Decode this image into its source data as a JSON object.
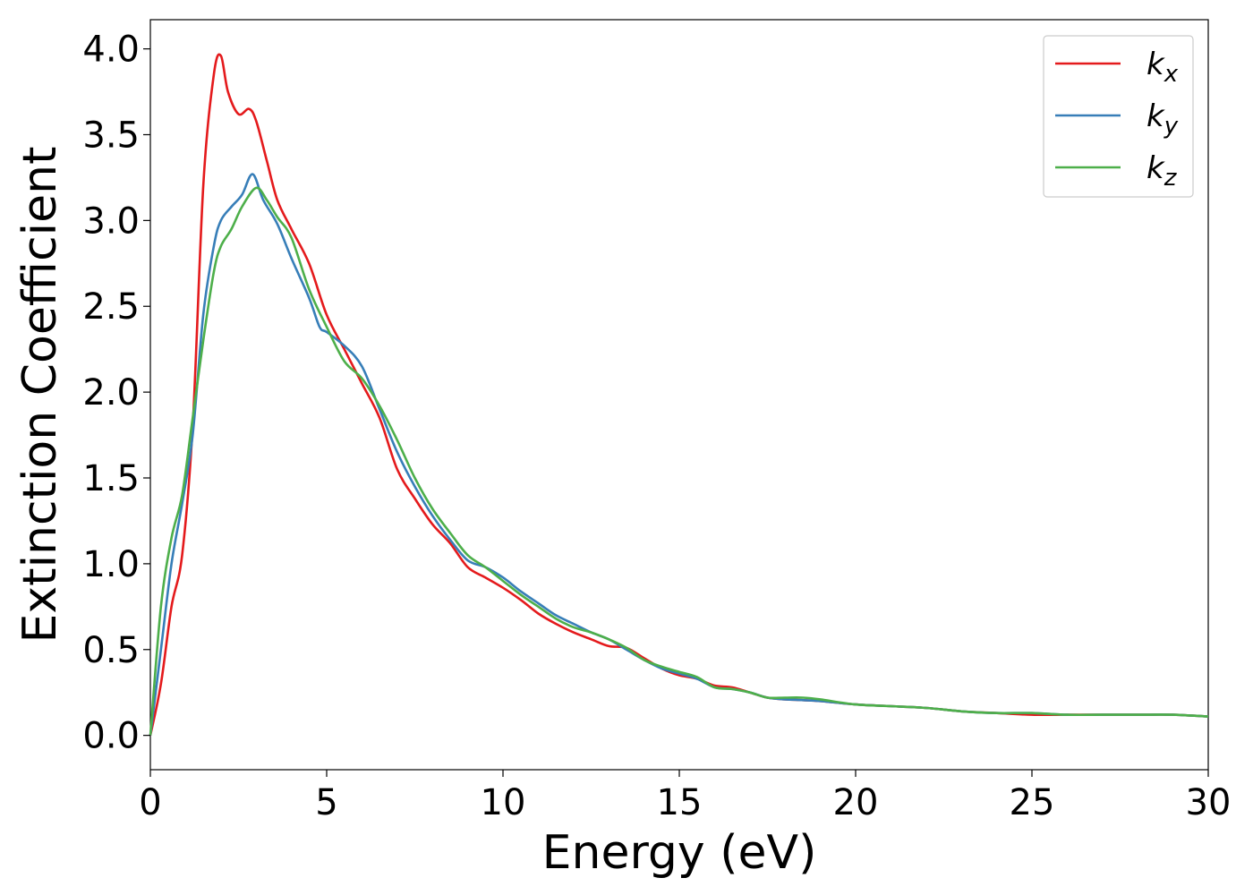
{
  "chart_data": {
    "type": "line",
    "title": "",
    "xlabel": "Energy (eV)",
    "ylabel": "Extinction Coefficient",
    "xlim": [
      0,
      30
    ],
    "ylim": [
      -0.2,
      4.17
    ],
    "xticks": [
      0,
      5,
      10,
      15,
      20,
      25,
      30
    ],
    "xtick_labels": [
      "0",
      "5",
      "10",
      "15",
      "20",
      "25",
      "30"
    ],
    "yticks": [
      0.0,
      0.5,
      1.0,
      1.5,
      2.0,
      2.5,
      3.0,
      3.5,
      4.0
    ],
    "ytick_labels": [
      "0.0",
      "0.5",
      "1.0",
      "1.5",
      "2.0",
      "2.5",
      "3.0",
      "3.5",
      "4.0"
    ],
    "grid": false,
    "legend_position": "top-right",
    "series": [
      {
        "name": "k",
        "subscript": "x",
        "color": "#e41a1c",
        "x": [
          0,
          0.3,
          0.6,
          0.9,
          1.2,
          1.5,
          1.8,
          2.0,
          2.2,
          2.5,
          2.8,
          3.0,
          3.3,
          3.6,
          4.0,
          4.5,
          5.0,
          5.5,
          6.0,
          6.5,
          7.0,
          7.5,
          8.0,
          8.5,
          9.0,
          9.5,
          10.0,
          10.5,
          11.0,
          11.5,
          12.0,
          12.5,
          13.0,
          13.5,
          14.0,
          14.5,
          15.0,
          15.5,
          16.0,
          16.5,
          17.0,
          17.5,
          18.0,
          19.0,
          20.0,
          21.0,
          22.0,
          23.0,
          24.0,
          25.0,
          26.0,
          27.0,
          28.0,
          29.0,
          30.0
        ],
        "values": [
          0.0,
          0.3,
          0.75,
          1.05,
          1.8,
          3.2,
          3.85,
          3.96,
          3.75,
          3.62,
          3.65,
          3.58,
          3.35,
          3.12,
          2.95,
          2.75,
          2.45,
          2.25,
          2.05,
          1.85,
          1.55,
          1.38,
          1.23,
          1.12,
          0.98,
          0.92,
          0.86,
          0.79,
          0.71,
          0.65,
          0.6,
          0.56,
          0.52,
          0.51,
          0.45,
          0.39,
          0.35,
          0.33,
          0.29,
          0.28,
          0.25,
          0.22,
          0.21,
          0.2,
          0.18,
          0.17,
          0.16,
          0.14,
          0.13,
          0.12,
          0.12,
          0.12,
          0.12,
          0.12,
          0.11
        ]
      },
      {
        "name": "k",
        "subscript": "y",
        "color": "#377eb8",
        "x": [
          0,
          0.3,
          0.6,
          0.9,
          1.2,
          1.5,
          1.8,
          2.0,
          2.3,
          2.6,
          2.9,
          3.2,
          3.6,
          4.0,
          4.5,
          4.8,
          5.0,
          5.5,
          6.0,
          6.5,
          7.0,
          7.5,
          8.0,
          8.5,
          9.0,
          9.5,
          10.0,
          10.5,
          11.0,
          11.5,
          12.0,
          12.5,
          13.0,
          13.5,
          14.0,
          14.5,
          15.0,
          15.5,
          16.0,
          16.5,
          17.0,
          17.5,
          18.0,
          19.0,
          20.0,
          21.0,
          22.0,
          23.0,
          24.0,
          25.0,
          26.0,
          27.0,
          28.0,
          29.0,
          30.0
        ],
        "values": [
          0.0,
          0.5,
          1.0,
          1.35,
          1.75,
          2.45,
          2.85,
          3.0,
          3.08,
          3.15,
          3.27,
          3.12,
          2.98,
          2.78,
          2.55,
          2.38,
          2.35,
          2.27,
          2.15,
          1.9,
          1.65,
          1.45,
          1.28,
          1.14,
          1.02,
          0.98,
          0.92,
          0.84,
          0.77,
          0.7,
          0.65,
          0.6,
          0.56,
          0.5,
          0.44,
          0.39,
          0.36,
          0.33,
          0.28,
          0.27,
          0.25,
          0.22,
          0.21,
          0.2,
          0.18,
          0.17,
          0.16,
          0.14,
          0.13,
          0.13,
          0.12,
          0.12,
          0.12,
          0.12,
          0.11
        ]
      },
      {
        "name": "k",
        "subscript": "z",
        "color": "#4daf4a",
        "x": [
          0,
          0.3,
          0.6,
          0.9,
          1.2,
          1.5,
          1.8,
          2.0,
          2.3,
          2.6,
          3.0,
          3.3,
          3.6,
          4.0,
          4.5,
          5.0,
          5.5,
          6.0,
          6.5,
          7.0,
          7.5,
          8.0,
          8.5,
          9.0,
          9.5,
          10.0,
          10.5,
          11.0,
          11.5,
          12.0,
          12.5,
          13.0,
          13.5,
          14.0,
          14.5,
          15.0,
          15.5,
          16.0,
          16.5,
          17.0,
          17.5,
          18.0,
          18.5,
          19.0,
          20.0,
          21.0,
          22.0,
          23.0,
          24.0,
          25.0,
          26.0,
          27.0,
          28.0,
          29.0,
          30.0
        ],
        "values": [
          0.0,
          0.75,
          1.15,
          1.4,
          1.85,
          2.3,
          2.7,
          2.85,
          2.95,
          3.08,
          3.19,
          3.12,
          3.02,
          2.9,
          2.6,
          2.38,
          2.18,
          2.08,
          1.92,
          1.72,
          1.5,
          1.32,
          1.18,
          1.05,
          0.98,
          0.9,
          0.82,
          0.75,
          0.68,
          0.63,
          0.6,
          0.56,
          0.51,
          0.44,
          0.4,
          0.37,
          0.34,
          0.28,
          0.27,
          0.25,
          0.22,
          0.22,
          0.22,
          0.21,
          0.18,
          0.17,
          0.16,
          0.14,
          0.13,
          0.13,
          0.12,
          0.12,
          0.12,
          0.12,
          0.11
        ]
      }
    ]
  }
}
